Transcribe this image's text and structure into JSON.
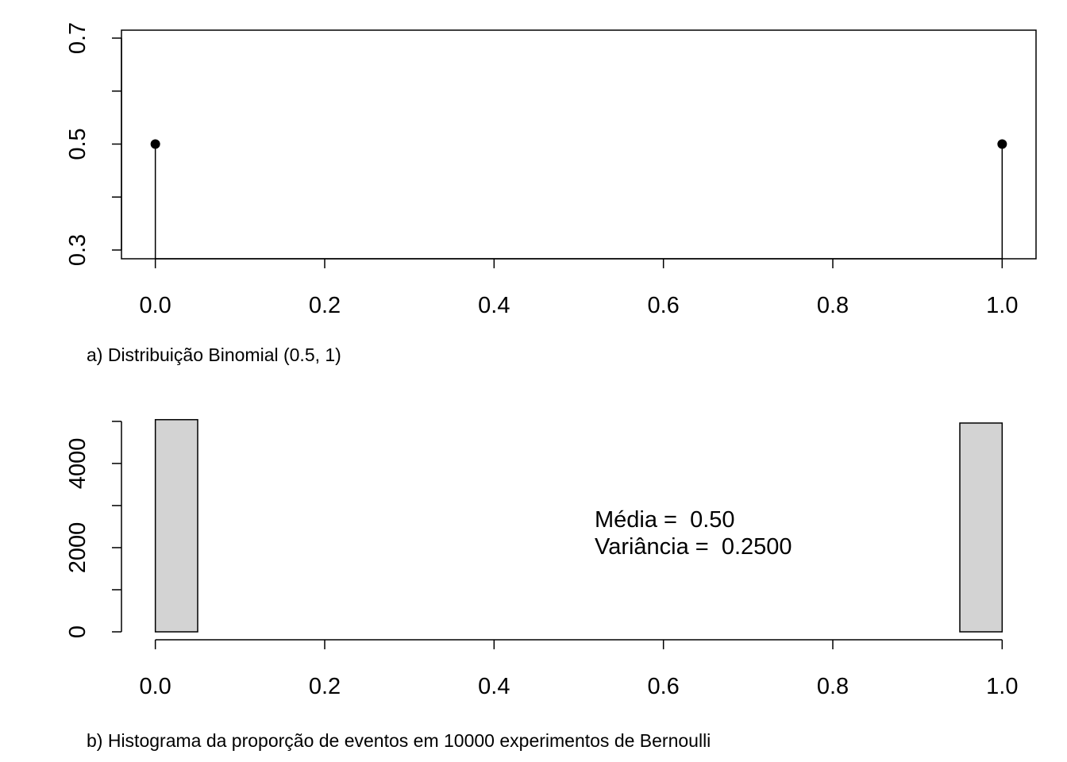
{
  "chart_data": [
    {
      "type": "stem",
      "caption": "a) Distribuição Binomial (0.5, 1)",
      "x": [
        0,
        1
      ],
      "values": [
        0.5,
        0.5
      ],
      "color": "#000000",
      "xlim": [
        -0.04,
        1.04
      ],
      "xticks": [
        {
          "value": 0,
          "label": "0.0"
        },
        0.2,
        0.4,
        0.6,
        0.8,
        {
          "value": 1,
          "label": "1.0"
        }
      ],
      "ylim": [
        0.2835,
        0.715
      ],
      "yticks": [
        0.3,
        0.5,
        0.7
      ],
      "minor_yticks": [
        0.4,
        0.6
      ]
    },
    {
      "type": "histogram",
      "caption": "b) Histograma da proporção de eventos em 10000 experimentos de Bernoulli",
      "bins": [
        0,
        0.05,
        0.1,
        0.15,
        0.2,
        0.25,
        0.3,
        0.35,
        0.4,
        0.45,
        0.5,
        0.55,
        0.6,
        0.65,
        0.7,
        0.75,
        0.8,
        0.85,
        0.9,
        0.95,
        1
      ],
      "values": [
        5040,
        0,
        0,
        0,
        0,
        0,
        0,
        0,
        0,
        0,
        0,
        0,
        0,
        0,
        0,
        0,
        0,
        0,
        0,
        4960
      ],
      "color": "#d3d3d3",
      "xlim": [
        -0.04,
        1.04
      ],
      "xticks": [
        {
          "value": 0,
          "label": "0.0"
        },
        0.2,
        0.4,
        0.6,
        0.8,
        {
          "value": 1,
          "label": "1.0"
        }
      ],
      "ylim": [
        0,
        5110
      ],
      "yticks": [
        0,
        2000,
        4000
      ],
      "minor_yticks": [
        1000,
        3000,
        5000
      ],
      "annotations": [
        "Média =  0.50",
        "Variância =  0.2500"
      ]
    }
  ]
}
